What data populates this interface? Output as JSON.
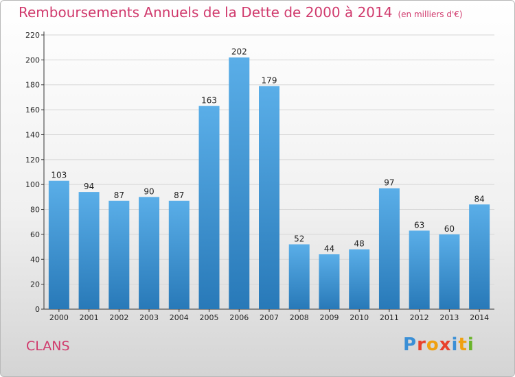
{
  "header": {
    "title": "Remboursements Annuels de la Dette de 2000 à 2014",
    "unit": "(en milliers d'€)"
  },
  "footer": {
    "commune": "CLANS",
    "logo": "Proxiti"
  },
  "colors": {
    "title": "#d0396c",
    "bar_top": "#5aaee8",
    "bar_bottom": "#2879b8",
    "logo_letters": [
      "#3a8fd6",
      "#e8412c",
      "#f0a010",
      "#e8412c",
      "#3a8fd6",
      "#f0a010",
      "#6ab42a"
    ]
  },
  "chart_data": {
    "type": "bar",
    "categories": [
      "2000",
      "2001",
      "2002",
      "2003",
      "2004",
      "2005",
      "2006",
      "2007",
      "2008",
      "2009",
      "2010",
      "2011",
      "2012",
      "2013",
      "2014"
    ],
    "values": [
      103,
      94,
      87,
      90,
      87,
      163,
      202,
      179,
      52,
      44,
      48,
      97,
      63,
      60,
      84
    ],
    "ylim": [
      0,
      220
    ],
    "yticks": [
      0,
      20,
      40,
      60,
      80,
      100,
      120,
      140,
      160,
      180,
      200,
      220
    ],
    "grid": true,
    "data_labels": true
  }
}
